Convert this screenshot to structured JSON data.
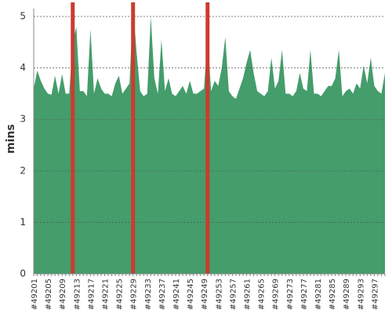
{
  "chart_data": {
    "type": "area",
    "y_label": "mins",
    "categories": [
      "#49201",
      null,
      null,
      null,
      "#49205",
      null,
      null,
      null,
      "#49209",
      null,
      null,
      null,
      "#49213",
      null,
      null,
      null,
      "#49217",
      null,
      null,
      null,
      "#49221",
      null,
      null,
      null,
      "#49225",
      null,
      null,
      null,
      "#49229",
      null,
      null,
      null,
      "#49233",
      null,
      null,
      null,
      "#49237",
      null,
      null,
      null,
      "#49241",
      null,
      null,
      null,
      "#49245",
      null,
      null,
      null,
      "#49249",
      null,
      null,
      null,
      "#49253",
      null,
      null,
      null,
      "#49257",
      null,
      null,
      null,
      "#49261",
      null,
      null,
      null,
      "#49265",
      null,
      null,
      null,
      "#49269",
      null,
      null,
      null,
      "#49273",
      null,
      null,
      null,
      "#49277",
      null,
      null,
      null,
      "#49281",
      null,
      null,
      null,
      "#49285",
      null,
      null,
      null,
      "#49289",
      null,
      null,
      null,
      "#49293",
      null,
      null,
      null,
      "#49297",
      null,
      null,
      null
    ],
    "values": [
      3.6,
      3.95,
      3.75,
      3.6,
      3.5,
      3.48,
      3.85,
      3.5,
      3.88,
      3.5,
      3.5,
      4.5,
      4.8,
      3.55,
      3.55,
      3.45,
      4.75,
      3.5,
      3.8,
      3.6,
      3.5,
      3.5,
      3.45,
      3.7,
      3.85,
      3.5,
      3.6,
      3.7,
      5.2,
      4.3,
      3.55,
      3.45,
      3.5,
      5.0,
      3.8,
      3.5,
      4.55,
      3.55,
      3.8,
      3.5,
      3.45,
      3.55,
      3.65,
      3.5,
      3.75,
      3.5,
      3.5,
      3.55,
      3.6,
      4.6,
      3.55,
      3.75,
      3.65,
      4.0,
      4.6,
      3.55,
      3.45,
      3.4,
      3.6,
      3.8,
      4.1,
      4.35,
      3.9,
      3.55,
      3.5,
      3.45,
      3.55,
      4.2,
      3.6,
      3.75,
      4.35,
      3.5,
      3.5,
      3.45,
      3.55,
      3.9,
      3.6,
      3.55,
      4.35,
      3.5,
      3.5,
      3.45,
      3.55,
      3.65,
      3.65,
      3.8,
      4.35,
      3.45,
      3.55,
      3.6,
      3.5,
      3.7,
      3.6,
      4.05,
      3.7,
      4.2,
      3.65,
      3.55,
      3.5,
      3.9
    ],
    "color": "#449d6b",
    "highlight_indices": [
      11,
      28,
      49
    ],
    "highlight_color": "#cc3b2f",
    "ylim": [
      0,
      5
    ],
    "yticks": [
      0,
      1,
      2,
      3,
      4,
      5
    ],
    "grid": true
  }
}
